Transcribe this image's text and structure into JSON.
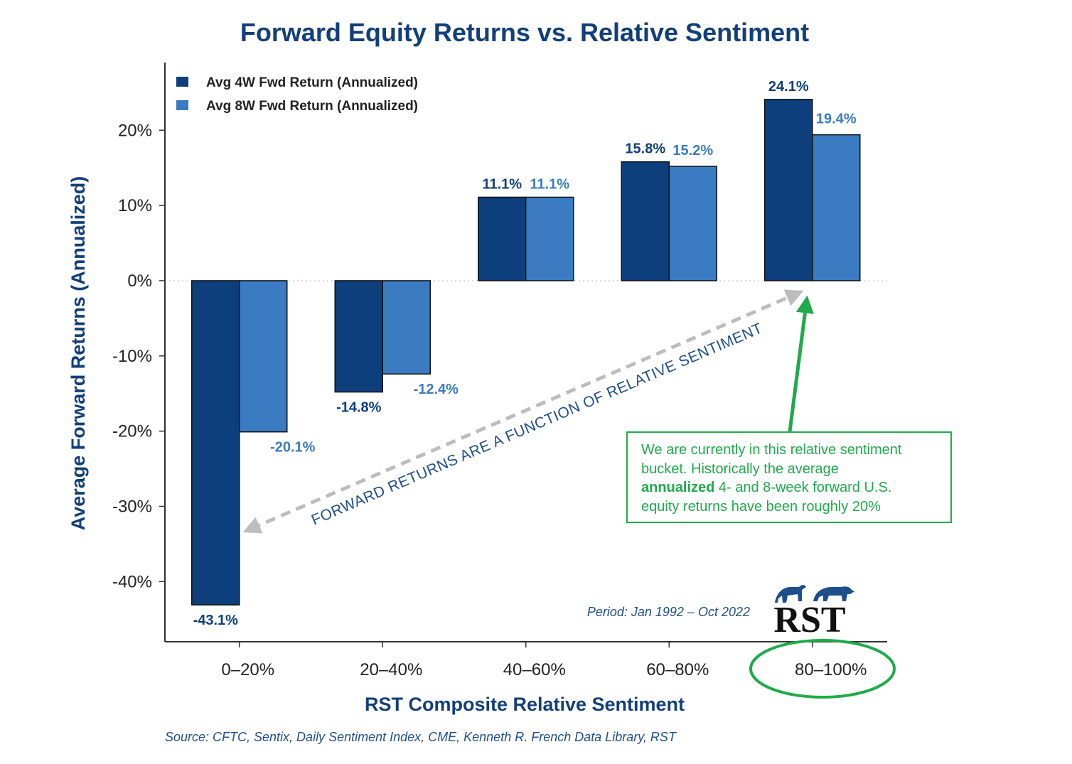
{
  "chart_data": {
    "type": "bar",
    "title": "Forward Equity Returns vs. Relative Sentiment",
    "xlabel": "RST Composite Relative Sentiment",
    "ylabel": "Average Forward Returns (Annualized)",
    "categories": [
      "0–20%",
      "20–40%",
      "40–60%",
      "60–80%",
      "80–100%"
    ],
    "series": [
      {
        "name": "Avg 4W Fwd Return (Annualized)",
        "values": [
          -43.1,
          -14.8,
          11.1,
          15.8,
          24.1
        ],
        "labels": [
          "-43.1%",
          "-14.8%",
          "11.1%",
          "15.8%",
          "24.1%"
        ],
        "color": "#0d3f7d"
      },
      {
        "name": "Avg 8W Fwd Return (Annualized)",
        "values": [
          -20.1,
          -12.4,
          11.1,
          15.2,
          19.4
        ],
        "labels": [
          "-20.1%",
          "-12.4%",
          "11.1%",
          "15.2%",
          "19.4%"
        ],
        "color": "#3a7bc2"
      }
    ],
    "ylim": [
      -48,
      29
    ],
    "yticks": [
      20,
      10,
      0,
      -10,
      -20,
      -30,
      -40
    ],
    "ytick_labels": [
      "20%",
      "10%",
      "0%",
      "-10%",
      "-20%",
      "-30%",
      "-40%"
    ],
    "grid": false,
    "legend": "top-left"
  },
  "annotations": {
    "diagonal_text": "FORWARD RETURNS ARE A FUNCTION OF RELATIVE SENTIMENT",
    "callout_lines": [
      "We are currently in this relative sentiment",
      "bucket. Historically the average"
    ],
    "callout_bold": "annualized",
    "callout_line3_rest": " 4- and 8-week forward U.S.",
    "callout_line4": "equity returns have been roughly 20%",
    "period": "Period: Jan 1992 – Oct 2022",
    "source": "Source: CFTC, Sentix, Daily Sentiment Index, CME, Kenneth R. French Data Library, RST",
    "logo_text": "RST",
    "highlighted_category": "80–100%"
  },
  "colors": {
    "title": "#123f7a",
    "series1": "#0d3f7d",
    "series2": "#3a7bc2",
    "green": "#1fab4a",
    "gray_arrow": "#bdbdbd",
    "note": "#1f4f8a"
  }
}
